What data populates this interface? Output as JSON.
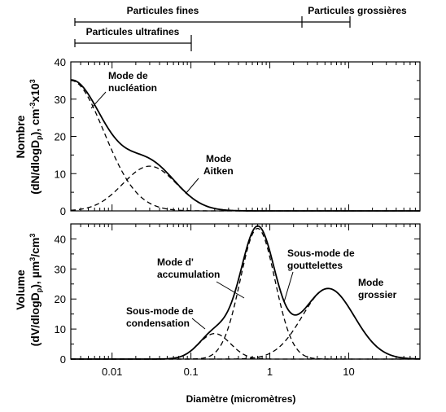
{
  "size_bars": {
    "fine": "Particules fines",
    "coarse": "Particules grossières",
    "ultrafine": "Particules ultrafines"
  },
  "chart_data": [
    {
      "type": "line",
      "panel": "number",
      "ylabel_line1": "Nombre",
      "ylabel_line2": "(dN/dlogDp), cm-3x103",
      "x_scale": "log",
      "xlim": [
        0.003,
        80
      ],
      "ylim": [
        0,
        40
      ],
      "yticks": [
        0,
        10,
        20,
        30,
        40
      ],
      "modes": [
        {
          "name": "Mode de nucléation",
          "amplitude": 35.0,
          "center_um": 0.003,
          "sigma_log10": 0.42
        },
        {
          "name": "Mode Aitken",
          "amplitude": 12.0,
          "center_um": 0.03,
          "sigma_log10": 0.34
        }
      ],
      "annotations": [
        {
          "lines": [
            "Mode de",
            "nucléation"
          ]
        },
        {
          "lines": [
            "Mode",
            "Aitken"
          ]
        }
      ]
    },
    {
      "type": "line",
      "panel": "volume",
      "ylabel_line1": "Volume",
      "ylabel_line2": "(dV/dlogDp), µm3/cm3",
      "x_scale": "log",
      "xlim": [
        0.003,
        80
      ],
      "ylim": [
        0,
        45
      ],
      "yticks": [
        0,
        10,
        20,
        30,
        40
      ],
      "xticks": [
        0.01,
        0.1,
        1,
        10
      ],
      "xticklabels": [
        "0.01",
        "0.1",
        "1",
        "10"
      ],
      "xlabel": "Diamètre (micromètres)",
      "modes": [
        {
          "name": "Sous-mode de condensation",
          "amplitude": 8.5,
          "center_um": 0.2,
          "sigma_log10": 0.2
        },
        {
          "name": "Mode d'accumulation",
          "amplitude": 43.5,
          "center_um": 0.7,
          "sigma_log10": 0.22
        },
        {
          "name": "Mode grossier",
          "amplitude": 23.5,
          "center_um": 5.5,
          "sigma_log10": 0.33
        }
      ],
      "annotations": [
        {
          "lines": [
            "Sous-mode de",
            "condensation"
          ]
        },
        {
          "lines": [
            "Mode d'",
            "accumulation"
          ]
        },
        {
          "lines": [
            "Sous-mode de",
            "gouttelettes"
          ]
        },
        {
          "lines": [
            "Mode",
            "grossier"
          ]
        }
      ]
    }
  ]
}
